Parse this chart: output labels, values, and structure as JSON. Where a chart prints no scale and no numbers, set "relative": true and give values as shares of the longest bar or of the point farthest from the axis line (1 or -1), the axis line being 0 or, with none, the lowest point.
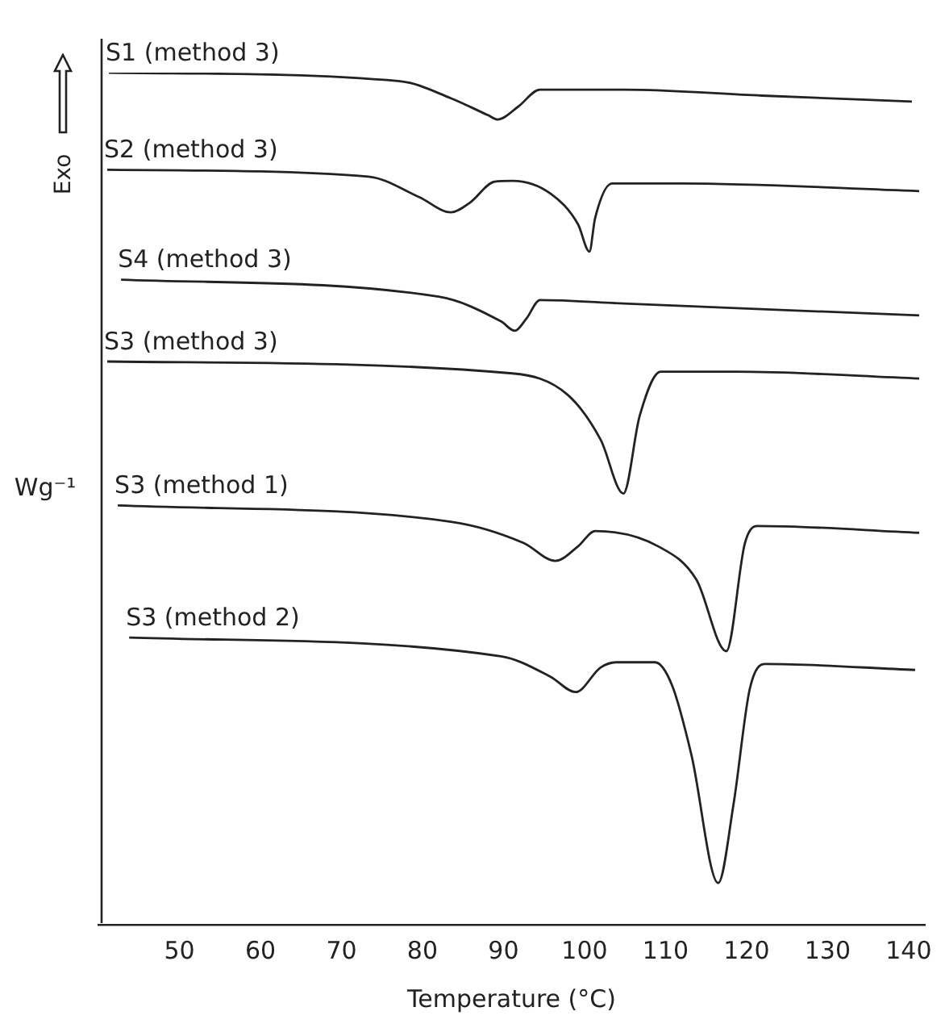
{
  "chart_data": {
    "type": "line",
    "xlabel": "Temperature (°C)",
    "ylabel": "Wg⁻¹",
    "annotations": [
      "Exo"
    ],
    "relative": true,
    "xlim": [
      40,
      142
    ],
    "xticks": [
      50,
      60,
      70,
      80,
      90,
      100,
      110,
      120,
      130,
      140
    ],
    "tick_labels": "x",
    "grid": false,
    "legend": false,
    "marker": "none",
    "line_style": "solid",
    "series": [
      {
        "name": "S1 (method 3)",
        "color": "#222222",
        "x": [
          41.3,
          77.2,
          83.5,
          88.1,
          89.3,
          91.8,
          94.5,
          104.8,
          121.9,
          140.4
        ],
        "values": [
          1.0,
          0.99,
          0.97,
          0.95,
          0.945,
          0.96,
          0.98,
          0.98,
          0.973,
          0.966
        ]
      },
      {
        "name": "S2 (method 3)",
        "color": "#222222",
        "x": [
          41.1,
          73.3,
          79.6,
          83.5,
          85.8,
          88.9,
          91.1,
          95.8,
          99.2,
          100.6,
          101.3,
          103.4,
          111.9,
          141.3
        ],
        "values": [
          0.886,
          0.878,
          0.854,
          0.836,
          0.847,
          0.872,
          0.873,
          0.858,
          0.822,
          0.79,
          0.829,
          0.87,
          0.87,
          0.861
        ]
      },
      {
        "name": "S4 (method 3)",
        "color": "#222222",
        "x": [
          42.8,
          82.0,
          89.7,
          91.4,
          92.8,
          94.5,
          104.8,
          141.3
        ],
        "values": [
          0.757,
          0.737,
          0.708,
          0.697,
          0.711,
          0.733,
          0.729,
          0.715
        ]
      },
      {
        "name": "S3 (method 3)",
        "color": "#222222",
        "x": [
          41.1,
          91.1,
          97.9,
          102.0,
          104.8,
          106.8,
          109.4,
          118.8,
          141.3
        ],
        "values": [
          0.661,
          0.647,
          0.622,
          0.569,
          0.506,
          0.597,
          0.649,
          0.649,
          0.641
        ]
      },
      {
        "name": "S3 (method 1)",
        "color": "#222222",
        "x": [
          42.4,
          83.5,
          92.5,
          96.4,
          99.2,
          101.3,
          109.1,
          113.8,
          117.5,
          119.8,
          121.3,
          141.3
        ],
        "values": [
          0.492,
          0.473,
          0.448,
          0.427,
          0.444,
          0.462,
          0.444,
          0.405,
          0.321,
          0.448,
          0.468,
          0.46
        ]
      },
      {
        "name": "S3 (method 2)",
        "color": "#222222",
        "x": [
          43.8,
          89.7,
          95.8,
          98.9,
          102.0,
          104.0,
          108.7,
          110.8,
          113.2,
          116.5,
          118.4,
          120.4,
          122.3,
          140.8
        ],
        "values": [
          0.337,
          0.315,
          0.291,
          0.273,
          0.302,
          0.308,
          0.308,
          0.281,
          0.199,
          0.049,
          0.142,
          0.277,
          0.306,
          0.299
        ]
      }
    ]
  }
}
